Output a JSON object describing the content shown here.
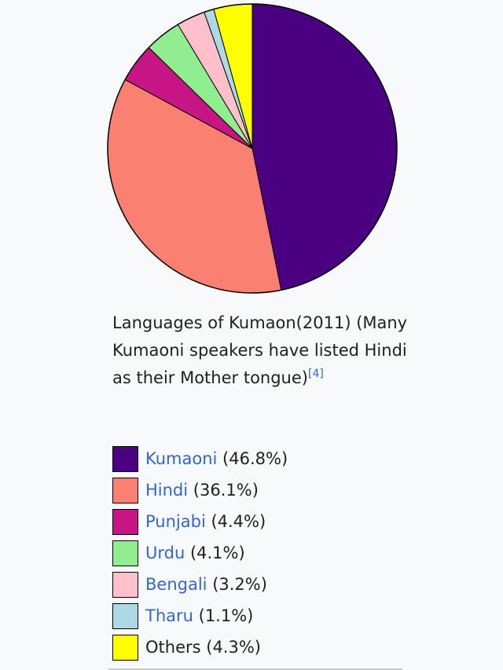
{
  "caption": {
    "text": "Languages of Kumaon(2011) (Many Kumaoni speakers have listed Hindi as their Mother tongue)",
    "ref": "[4]"
  },
  "chart_data": {
    "type": "pie",
    "title": "Languages of Kumaon(2011)",
    "slices": [
      {
        "label": "Kumaoni",
        "value": 46.8,
        "display": "(46.8%)",
        "color": "#4b0082",
        "link": true
      },
      {
        "label": "Hindi",
        "value": 36.1,
        "display": "(36.1%)",
        "color": "#fa8072",
        "link": true
      },
      {
        "label": "Punjabi",
        "value": 4.4,
        "display": "(4.4%)",
        "color": "#c71585",
        "link": true
      },
      {
        "label": "Urdu",
        "value": 4.1,
        "display": "(4.1%)",
        "color": "#90ee90",
        "link": true
      },
      {
        "label": "Bengali",
        "value": 3.2,
        "display": "(3.2%)",
        "color": "#ffc0cb",
        "link": true
      },
      {
        "label": "Tharu",
        "value": 1.1,
        "display": "(1.1%)",
        "color": "#add8e6",
        "link": true
      },
      {
        "label": "Others",
        "value": 4.3,
        "display": "(4.3%)",
        "color": "#ffff00",
        "link": false
      }
    ],
    "start_angle": "12 o'clock",
    "direction": "clockwise",
    "legend_position": "below"
  }
}
